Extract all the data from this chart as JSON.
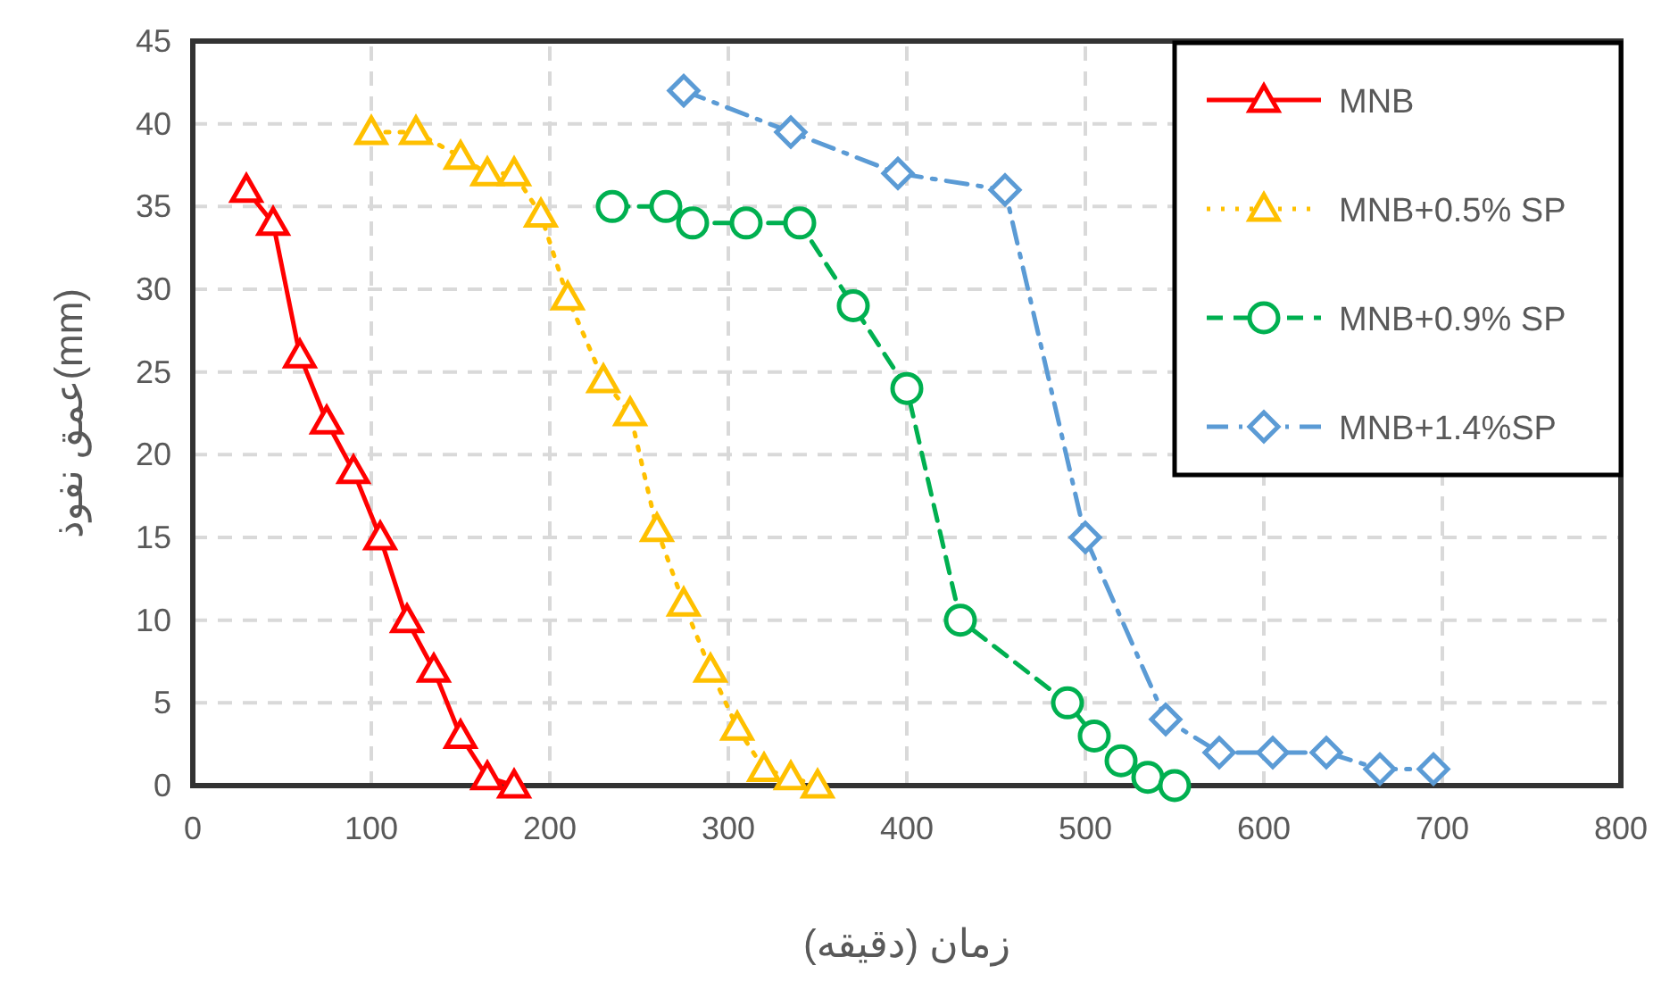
{
  "chart_data": {
    "type": "line",
    "xlabel": "زمان (دقیقه)",
    "ylabel": "عمق نفوذ(mm)",
    "xlim": [
      0,
      800
    ],
    "ylim": [
      0,
      45
    ],
    "xticks": [
      0,
      100,
      200,
      300,
      400,
      500,
      600,
      700,
      800
    ],
    "yticks": [
      0,
      5,
      10,
      15,
      20,
      25,
      30,
      35,
      40,
      45
    ],
    "grid": true,
    "legend": "top right",
    "series": [
      {
        "name": "MNB",
        "color": "#ff0000",
        "marker": "triangle",
        "line_style": "solid",
        "x": [
          30,
          45,
          60,
          75,
          90,
          105,
          120,
          135,
          150,
          165,
          180
        ],
        "values": [
          36,
          34,
          26,
          22,
          19,
          15,
          10,
          7,
          3,
          0.5,
          0
        ]
      },
      {
        "name": "MNB+0.5% SP",
        "color": "#ffc000",
        "marker": "triangle",
        "line_style": "dotted",
        "x": [
          100,
          125,
          150,
          165,
          180,
          195,
          210,
          230,
          245,
          260,
          275,
          290,
          305,
          320,
          335,
          350
        ],
        "values": [
          39.5,
          39.5,
          38,
          37,
          37,
          34.5,
          29.5,
          24.5,
          22.5,
          15.5,
          11,
          7,
          3.5,
          1,
          0.5,
          0
        ]
      },
      {
        "name": "MNB+0.9% SP",
        "color": "#00b050",
        "marker": "circle",
        "line_style": "dashed",
        "x": [
          235,
          265,
          280,
          310,
          340,
          370,
          400,
          430,
          490,
          505,
          520,
          535,
          550
        ],
        "values": [
          35,
          35,
          34,
          34,
          34,
          29,
          24,
          10,
          5,
          3,
          1.5,
          0.5,
          0
        ]
      },
      {
        "name": "MNB+1.4%SP",
        "color": "#5b9bd5",
        "marker": "diamond",
        "line_style": "dashdot",
        "x": [
          275,
          335,
          395,
          455,
          500,
          545,
          575,
          605,
          635,
          665,
          695
        ],
        "values": [
          42,
          39.5,
          37,
          36,
          15,
          4,
          2,
          2,
          2,
          1,
          1
        ]
      }
    ]
  }
}
